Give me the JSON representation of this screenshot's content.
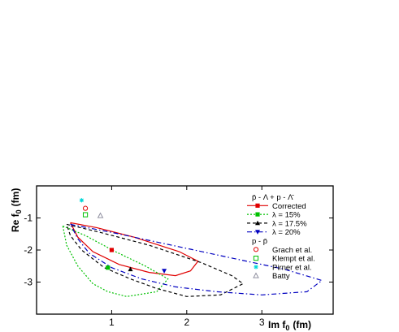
{
  "chart_data": {
    "type": "line",
    "xlabel": "Im f",
    "xlabel_sub": "0",
    "xlabel_unit": "(fm)",
    "ylabel": "Re f",
    "ylabel_sub": "0",
    "ylabel_unit": "(fm)",
    "xlim": [
      0.0,
      3.95
    ],
    "ylim": [
      -4.0,
      0.0
    ],
    "xticks": [
      1,
      2,
      3
    ],
    "yticks": [
      -1,
      -2,
      -3
    ],
    "grid": false,
    "legend_position": "right",
    "legend_headers": [
      {
        "before_group": 0,
        "text": "p̄ - Λ + p - Λ̄"
      },
      {
        "before_group": 1,
        "text": "p - p̄"
      }
    ],
    "series": [
      {
        "name": "Corrected",
        "color": "#e00000",
        "dash": "",
        "marker": "square",
        "contour": [
          [
            0.45,
            -1.15
          ],
          [
            0.8,
            -1.3
          ],
          [
            1.3,
            -1.6
          ],
          [
            1.9,
            -2.05
          ],
          [
            2.15,
            -2.35
          ],
          [
            2.05,
            -2.65
          ],
          [
            1.85,
            -2.8
          ],
          [
            1.5,
            -2.7
          ],
          [
            1.1,
            -2.45
          ],
          [
            0.75,
            -2.05
          ],
          [
            0.55,
            -1.6
          ],
          [
            0.45,
            -1.15
          ]
        ],
        "best_fit": [
          1.0,
          -2.0
        ]
      },
      {
        "name": "λ = 15%",
        "color": "#00c000",
        "dash": "2,2",
        "marker": "square",
        "contour": [
          [
            0.35,
            -1.25
          ],
          [
            0.65,
            -1.55
          ],
          [
            1.05,
            -2.05
          ],
          [
            1.45,
            -2.5
          ],
          [
            1.75,
            -2.9
          ],
          [
            1.6,
            -3.3
          ],
          [
            1.2,
            -3.45
          ],
          [
            0.95,
            -3.3
          ],
          [
            0.75,
            -3.05
          ],
          [
            0.55,
            -2.5
          ],
          [
            0.4,
            -1.85
          ],
          [
            0.35,
            -1.25
          ]
        ],
        "best_fit": [
          0.95,
          -2.55
        ]
      },
      {
        "name": "λ = 17.5%",
        "color": "#000000",
        "dash": "4,3",
        "marker": "triangle",
        "contour": [
          [
            0.4,
            -1.2
          ],
          [
            0.85,
            -1.45
          ],
          [
            1.5,
            -1.85
          ],
          [
            2.2,
            -2.4
          ],
          [
            2.6,
            -2.8
          ],
          [
            2.75,
            -3.05
          ],
          [
            2.45,
            -3.4
          ],
          [
            2.0,
            -3.45
          ],
          [
            1.6,
            -3.2
          ],
          [
            1.25,
            -2.9
          ],
          [
            0.9,
            -2.55
          ],
          [
            0.6,
            -2.0
          ],
          [
            0.45,
            -1.55
          ],
          [
            0.4,
            -1.2
          ]
        ],
        "best_fit": [
          1.25,
          -2.6
        ]
      },
      {
        "name": "λ = 20%",
        "color": "#0000c0",
        "dash": "6,3,1.5,3",
        "marker": "triangle-down",
        "contour": [
          [
            0.45,
            -1.2
          ],
          [
            1.0,
            -1.45
          ],
          [
            1.8,
            -1.85
          ],
          [
            2.6,
            -2.25
          ],
          [
            3.3,
            -2.6
          ],
          [
            3.8,
            -2.95
          ],
          [
            3.6,
            -3.3
          ],
          [
            3.0,
            -3.4
          ],
          [
            2.4,
            -3.3
          ],
          [
            1.85,
            -3.15
          ],
          [
            1.4,
            -2.9
          ],
          [
            1.0,
            -2.55
          ],
          [
            0.7,
            -2.1
          ],
          [
            0.55,
            -1.65
          ],
          [
            0.45,
            -1.2
          ]
        ],
        "best_fit": [
          1.7,
          -2.65
        ]
      },
      {
        "name": "Grach et al.",
        "color": "#e00000",
        "marker": "circle",
        "points": [
          [
            0.65,
            -0.7
          ]
        ]
      },
      {
        "name": "Klempt et al.",
        "color": "#00c000",
        "marker": "open-square",
        "points": [
          [
            0.65,
            -0.9
          ]
        ]
      },
      {
        "name": "Pirner et al.",
        "color": "#00d8d8",
        "marker": "cross",
        "points": [
          [
            0.6,
            -0.45
          ]
        ]
      },
      {
        "name": "Batty",
        "color": "#9090a0",
        "marker": "open-triangle",
        "points": [
          [
            0.85,
            -0.93
          ]
        ]
      }
    ]
  }
}
